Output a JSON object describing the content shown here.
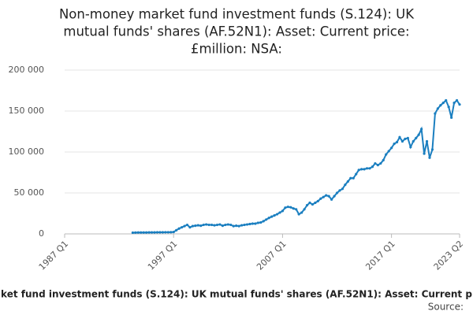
{
  "chart_data": {
    "type": "line",
    "title": [
      "Non-money market fund investment funds (S.124): UK",
      "mutual funds' shares (AF.52N1): Asset: Current price:",
      "£million: NSA:"
    ],
    "caption": "ket fund investment funds (S.124): UK mutual funds' shares (AF.52N1): Asset: Current p",
    "source": "Source:",
    "xlim": [
      "1987 Q1",
      "2023 Q2"
    ],
    "xticks": [
      "1987 Q1",
      "1997 Q1",
      "2007 Q1",
      "2017 Q1",
      "2023 Q2"
    ],
    "ylim": [
      0,
      200000
    ],
    "yticks": [
      0,
      {
        "value": 50000,
        "label": "50 000"
      },
      {
        "value": 100000,
        "label": "100 000"
      },
      {
        "value": 150000,
        "label": "150 000"
      },
      {
        "value": 200000,
        "label": "200 000"
      }
    ],
    "grid": true,
    "series": [
      {
        "color": "#1b7fc0",
        "x": [
          "1993 Q2",
          "1993 Q3",
          "1993 Q4",
          "1994 Q1",
          "1994 Q2",
          "1994 Q3",
          "1994 Q4",
          "1995 Q1",
          "1995 Q2",
          "1995 Q3",
          "1995 Q4",
          "1996 Q1",
          "1996 Q2",
          "1996 Q3",
          "1996 Q4",
          "1997 Q1",
          "1997 Q2",
          "1997 Q3",
          "1997 Q4",
          "1998 Q1",
          "1998 Q2",
          "1998 Q3",
          "1998 Q4",
          "1999 Q1",
          "1999 Q2",
          "1999 Q3",
          "1999 Q4",
          "2000 Q1",
          "2000 Q2",
          "2000 Q3",
          "2000 Q4",
          "2001 Q1",
          "2001 Q2",
          "2001 Q3",
          "2001 Q4",
          "2002 Q1",
          "2002 Q2",
          "2002 Q3",
          "2002 Q4",
          "2003 Q1",
          "2003 Q2",
          "2003 Q3",
          "2003 Q4",
          "2004 Q1",
          "2004 Q2",
          "2004 Q3",
          "2004 Q4",
          "2005 Q1",
          "2005 Q2",
          "2005 Q3",
          "2005 Q4",
          "2006 Q1",
          "2006 Q2",
          "2006 Q3",
          "2006 Q4",
          "2007 Q1",
          "2007 Q2",
          "2007 Q3",
          "2007 Q4",
          "2008 Q1",
          "2008 Q2",
          "2008 Q3",
          "2008 Q4",
          "2009 Q1",
          "2009 Q2",
          "2009 Q3",
          "2009 Q4",
          "2010 Q1",
          "2010 Q2",
          "2010 Q3",
          "2010 Q4",
          "2011 Q1",
          "2011 Q2",
          "2011 Q3",
          "2011 Q4",
          "2012 Q1",
          "2012 Q2",
          "2012 Q3",
          "2012 Q4",
          "2013 Q1",
          "2013 Q2",
          "2013 Q3",
          "2013 Q4",
          "2014 Q1",
          "2014 Q2",
          "2014 Q3",
          "2014 Q4",
          "2015 Q1",
          "2015 Q2",
          "2015 Q3",
          "2015 Q4",
          "2016 Q1",
          "2016 Q2",
          "2016 Q3",
          "2016 Q4",
          "2017 Q1",
          "2017 Q2",
          "2017 Q3",
          "2017 Q4",
          "2018 Q1",
          "2018 Q2",
          "2018 Q3",
          "2018 Q4",
          "2019 Q1",
          "2019 Q2",
          "2019 Q3",
          "2019 Q4",
          "2020 Q1",
          "2020 Q2",
          "2020 Q3",
          "2020 Q4",
          "2021 Q1",
          "2021 Q2",
          "2021 Q3",
          "2021 Q4",
          "2022 Q1",
          "2022 Q2",
          "2022 Q3",
          "2022 Q4",
          "2023 Q1",
          "2023 Q2"
        ],
        "values": [
          1500,
          1600,
          1700,
          1700,
          1700,
          1700,
          1800,
          1800,
          1800,
          1900,
          1900,
          1900,
          2000,
          2000,
          2100,
          2300,
          4500,
          6500,
          8000,
          9500,
          11000,
          8000,
          9500,
          10000,
          10500,
          10000,
          11000,
          11500,
          11000,
          11000,
          10500,
          11000,
          11500,
          10000,
          11000,
          11500,
          11000,
          9500,
          10000,
          9500,
          10500,
          11000,
          11500,
          12000,
          12500,
          12500,
          13500,
          14000,
          15500,
          17500,
          19500,
          21000,
          22500,
          24000,
          26000,
          28000,
          32000,
          33000,
          32500,
          31000,
          30000,
          24000,
          26000,
          30000,
          35000,
          38000,
          36000,
          38000,
          40000,
          43000,
          45000,
          47000,
          46000,
          42000,
          46000,
          50000,
          53000,
          55000,
          60000,
          64000,
          68000,
          68000,
          73000,
          78000,
          79000,
          79000,
          80000,
          80000,
          82000,
          86000,
          84000,
          86000,
          90000,
          97000,
          101000,
          105000,
          110000,
          112000,
          118000,
          113000,
          116000,
          117000,
          106000,
          113000,
          117000,
          121000,
          128000,
          98000,
          113000,
          93000,
          103000,
          147000,
          153000,
          157000,
          160000,
          163000,
          155000,
          142000,
          160000,
          163000,
          158000
        ]
      }
    ]
  }
}
